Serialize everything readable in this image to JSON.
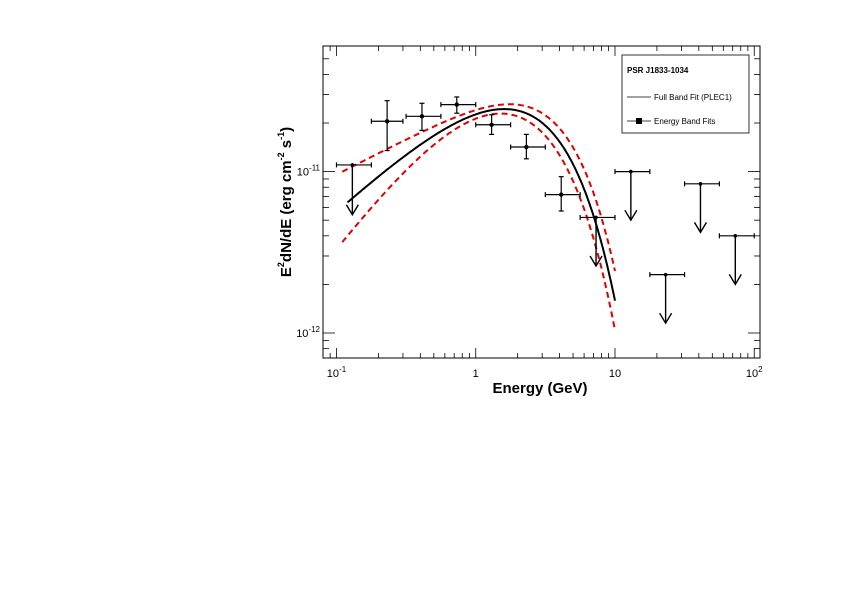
{
  "chart_data": {
    "type": "scatter",
    "xlabel": "Energy (GeV)",
    "ylabel": {
      "parts": [
        "E",
        "2",
        "dN/dE (erg cm",
        "-2",
        " s",
        "-1",
        ")"
      ]
    },
    "x_scale": "log",
    "y_scale": "log",
    "xlim": [
      0.08,
      110
    ],
    "ylim": [
      7e-13,
      6e-11
    ],
    "x_ticks": [
      {
        "value": 0.1,
        "base": "10",
        "exp": "-1"
      },
      {
        "value": 1,
        "base": "1",
        "exp": ""
      },
      {
        "value": 10,
        "base": "10",
        "exp": ""
      },
      {
        "value": 100,
        "base": "10",
        "exp": "2"
      }
    ],
    "y_ticks": [
      {
        "value": 1e-12,
        "base": "10",
        "exp": "-12"
      },
      {
        "value": 1e-11,
        "base": "10",
        "exp": "-11"
      }
    ],
    "grid": false,
    "legend": {
      "placement": "top-right",
      "title": "PSR J1833-1034",
      "entries": [
        {
          "label": "Full Band Fit (PLEC1)",
          "style": "line"
        },
        {
          "label": "Energy Band Fits",
          "style": "line-marker"
        }
      ]
    },
    "series": [
      {
        "name": "Energy Band Fits",
        "kind": "points",
        "color": "#000000",
        "points": [
          {
            "x": 0.231,
            "y": 2.05e-11,
            "xlo": 0.178,
            "xhi": 0.3,
            "ylo": 1.35e-11,
            "yhi": 2.75e-11
          },
          {
            "x": 0.411,
            "y": 2.2e-11,
            "xlo": 0.316,
            "xhi": 0.562,
            "ylo": 1.8e-11,
            "yhi": 2.65e-11
          },
          {
            "x": 0.731,
            "y": 2.6e-11,
            "xlo": 0.562,
            "xhi": 1.0,
            "ylo": 2.3e-11,
            "yhi": 2.9e-11
          },
          {
            "x": 1.3,
            "y": 1.95e-11,
            "xlo": 1.0,
            "xhi": 1.78,
            "ylo": 1.7e-11,
            "yhi": 2.25e-11
          },
          {
            "x": 2.31,
            "y": 1.42e-11,
            "xlo": 1.78,
            "xhi": 3.16,
            "ylo": 1.2e-11,
            "yhi": 1.7e-11
          },
          {
            "x": 4.11,
            "y": 7.2e-12,
            "xlo": 3.16,
            "xhi": 5.62,
            "ylo": 5.7e-12,
            "yhi": 9.3e-12
          }
        ]
      },
      {
        "name": "Energy Band Fits (upper limits)",
        "kind": "upper_limits",
        "color": "#000000",
        "points": [
          {
            "x": 0.13,
            "y": 1.1e-11,
            "xlo": 0.1,
            "xhi": 0.178,
            "arrow_to": 5.4e-12
          },
          {
            "x": 7.31,
            "y": 5.2e-12,
            "xlo": 5.62,
            "xhi": 10.0,
            "arrow_to": 2.6e-12
          },
          {
            "x": 13.0,
            "y": 1e-11,
            "xlo": 10.0,
            "xhi": 17.8,
            "arrow_to": 5e-12
          },
          {
            "x": 23.1,
            "y": 2.3e-12,
            "xlo": 17.8,
            "xhi": 31.6,
            "arrow_to": 1.15e-12
          },
          {
            "x": 41.1,
            "y": 8.4e-12,
            "xlo": 31.6,
            "xhi": 56.2,
            "arrow_to": 4.2e-12
          },
          {
            "x": 73.1,
            "y": 4e-12,
            "xlo": 56.2,
            "xhi": 100,
            "arrow_to": 2e-12
          }
        ]
      },
      {
        "name": "Full Band Fit (PLEC1)",
        "kind": "curve",
        "color": "#000000",
        "x_range": [
          0.12,
          10
        ],
        "model": {
          "norm": 3.73e-11,
          "index": 1.2,
          "cutoff": 2.0,
          "offset": 1.0
        },
        "dash": false
      },
      {
        "kind": "curve",
        "color": "#e00000",
        "x_range": [
          0.11,
          10
        ],
        "model": {
          "norm": 3.73e-11,
          "index": 1.2,
          "cutoff": 2.0,
          "offset": 1.07,
          "band": "upper"
        },
        "dash": true
      },
      {
        "kind": "curve",
        "color": "#e00000",
        "x_range": [
          0.11,
          10
        ],
        "model": {
          "norm": 3.73e-11,
          "index": 1.2,
          "cutoff": 2.0,
          "offset": 0.93,
          "band": "lower"
        },
        "dash": true
      }
    ]
  }
}
